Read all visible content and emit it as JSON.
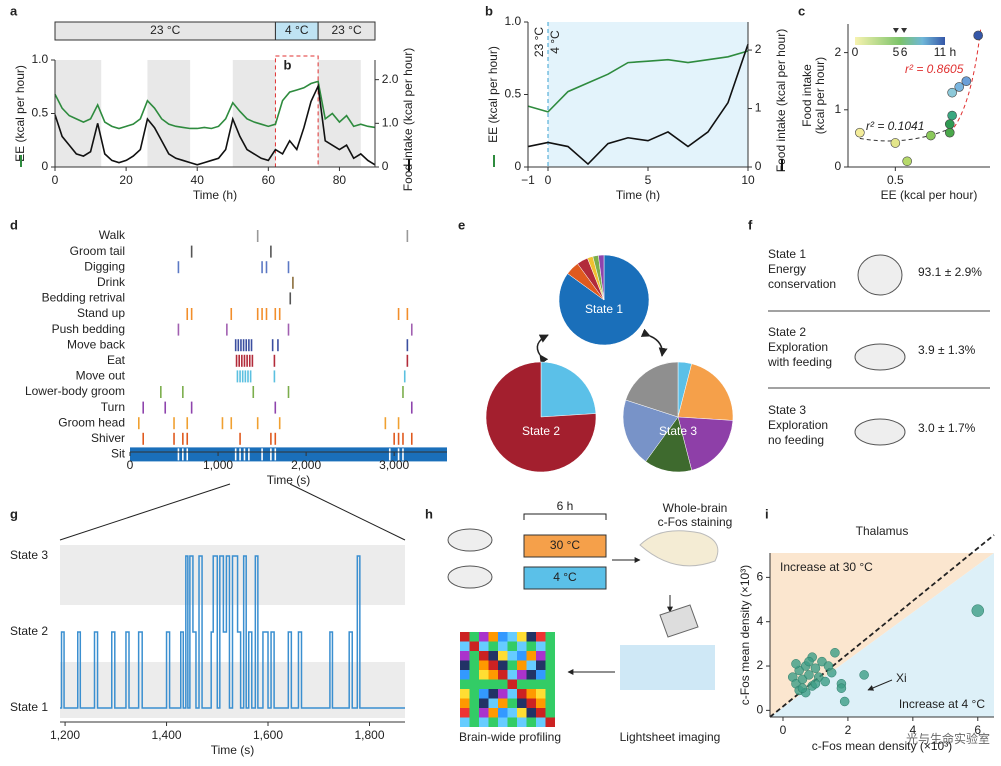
{
  "chart_data": [
    {
      "type": "line",
      "xlim": [
        0,
        90
      ],
      "xticks": [
        0,
        20,
        40,
        60,
        80
      ],
      "ylim": [
        0,
        1
      ],
      "yticks": [
        0,
        0.5,
        {
          "value": 1,
          "label": "1.0"
        }
      ],
      "y2lim": [
        0,
        2.45
      ],
      "y2ticks": [
        0,
        {
          "value": 1,
          "label": "1.0"
        },
        {
          "value": 2,
          "label": "2.0"
        }
      ],
      "xlabel": "Time (h)",
      "ylabel": "EE (kcal per hour)",
      "y2label": "Food intake (kcal per hour)",
      "shaded": [
        [
          0,
          13
        ],
        [
          26,
          38
        ],
        [
          50,
          62
        ],
        [
          74,
          86
        ]
      ],
      "temperature": [
        {
          "label": "23 °C",
          "start": 0,
          "end": 62,
          "color": "#e6e6e6"
        },
        {
          "label": "4 °C",
          "start": 62,
          "end": 74,
          "color": "#bfe3f3"
        },
        {
          "label": "23 °C",
          "start": 74,
          "end": 90,
          "color": "#e6e6e6"
        }
      ],
      "highlight": {
        "label": "b",
        "start": 62,
        "end": 74
      },
      "x": [
        0,
        2,
        4,
        6,
        8,
        10,
        12,
        14,
        16,
        18,
        20,
        22,
        24,
        26,
        28,
        30,
        32,
        34,
        36,
        38,
        40,
        42,
        44,
        46,
        48,
        50,
        52,
        54,
        56,
        58,
        60,
        62,
        64,
        66,
        68,
        70,
        72,
        74,
        76,
        78,
        80,
        82,
        84,
        86,
        88,
        90
      ],
      "series": [
        {
          "color": "#2e8b3e",
          "values": [
            0.68,
            0.55,
            0.48,
            0.45,
            0.42,
            0.45,
            0.58,
            0.42,
            0.38,
            0.36,
            0.38,
            0.4,
            0.45,
            0.62,
            0.55,
            0.45,
            0.4,
            0.38,
            0.37,
            0.36,
            0.36,
            0.37,
            0.36,
            0.38,
            0.45,
            0.6,
            0.52,
            0.45,
            0.42,
            0.4,
            0.38,
            0.4,
            0.62,
            0.7,
            0.72,
            0.74,
            0.78,
            0.8,
            0.45,
            0.5,
            0.42,
            0.48,
            0.38,
            0.4,
            0.38,
            0.37
          ]
        },
        {
          "color": "#111111",
          "axis": "y2",
          "values": [
            1.2,
            0.7,
            0.5,
            0.3,
            0.25,
            0.35,
            1.0,
            0.3,
            0.15,
            0.1,
            0.15,
            0.25,
            0.4,
            1.1,
            0.9,
            0.6,
            0.3,
            0.2,
            0.15,
            0.1,
            0.05,
            0.1,
            0.15,
            0.2,
            0.4,
            1.1,
            0.7,
            0.4,
            0.3,
            0.2,
            0.15,
            0.4,
            0.3,
            0.6,
            0.4,
            0.9,
            1.5,
            1.85,
            0.6,
            0.5,
            0.4,
            0.5,
            0.2,
            0.3,
            0.15,
            0.05
          ]
        }
      ]
    },
    {
      "type": "line",
      "xlim": [
        -1,
        10
      ],
      "xticks": [
        {
          "value": -1,
          "label": "−1"
        },
        0,
        5,
        10
      ],
      "ylim": [
        0,
        1
      ],
      "yticks": [
        0,
        0.5,
        {
          "value": 1,
          "label": "1.0"
        }
      ],
      "y2lim": [
        0,
        2.48
      ],
      "y2ticks": [
        0,
        1,
        2
      ],
      "xlabel": "Time (h)",
      "ylabel": "EE (kcal per hour)",
      "y2label": "Food intake (kcal per hour)",
      "cold_period": [
        0,
        10
      ],
      "annotations": [
        "23 °C",
        "4 °C"
      ],
      "x": [
        -1,
        0,
        1,
        2,
        3,
        4,
        5,
        6,
        7,
        8,
        9,
        10
      ],
      "series": [
        {
          "color": "#2e8b3e",
          "values": [
            0.42,
            0.38,
            0.52,
            0.58,
            0.64,
            0.72,
            0.73,
            0.74,
            0.72,
            0.74,
            0.76,
            0.8
          ]
        },
        {
          "color": "#111111",
          "axis": "y2",
          "values": [
            0.35,
            0.42,
            0.35,
            0.05,
            0.4,
            0.5,
            0.45,
            0.6,
            0.35,
            0.6,
            1.1,
            2.1
          ]
        }
      ]
    },
    {
      "type": "scatter",
      "xlim": [
        0.3,
        0.9
      ],
      "xticks": [
        0.5
      ],
      "ylim": [
        0,
        2.5
      ],
      "yticks": [
        0,
        1,
        2
      ],
      "xlabel": "EE (kcal per hour)",
      "ylabel": [
        "Food intake",
        "(kcal per hour)"
      ],
      "annotations": [
        "r² = 0.8605",
        "r² = 0.1041"
      ],
      "colorbar": {
        "range": [
          0,
          11
        ],
        "ticks": [
          0,
          5,
          6,
          {
            "value": 11,
            "label": "11 h"
          }
        ]
      },
      "x": [
        0.35,
        0.5,
        0.55,
        0.65,
        0.73,
        0.73,
        0.74,
        0.74,
        0.77,
        0.8,
        0.85
      ],
      "values": [
        0.6,
        0.42,
        0.1,
        0.55,
        0.6,
        0.75,
        0.9,
        1.3,
        1.4,
        1.5,
        2.3
      ],
      "colors": [
        "#f3ec9a",
        "#e3e58a",
        "#b6d96a",
        "#8cc95c",
        "#4aa84a",
        "#2f9a52",
        "#3aa780",
        "#8dc9d9",
        "#7ab6e0",
        "#6a9fd8",
        "#3557a8"
      ]
    },
    {
      "type": "ethogram",
      "xlim": [
        0,
        3600
      ],
      "xticks": [
        0,
        {
          "value": 1000,
          "label": "1,000"
        },
        {
          "value": 2000,
          "label": "2,000"
        },
        {
          "value": 3000,
          "label": "3,000"
        }
      ],
      "xlabel": "Time (s)",
      "rows": [
        {
          "label": "Walk",
          "color": "#999999",
          "events": [
            1450,
            3150
          ]
        },
        {
          "label": "Groom tail",
          "color": "#555555",
          "events": [
            700,
            1600
          ]
        },
        {
          "label": "Digging",
          "color": "#5b78c4",
          "events": [
            550,
            1500,
            1550,
            1800
          ]
        },
        {
          "label": "Drink",
          "color": "#8a6d3b",
          "events": [
            1850
          ]
        },
        {
          "label": "Bedding retrival",
          "color": "#555555",
          "events": [
            1820
          ]
        },
        {
          "label": "Stand up",
          "color": "#f28e2b",
          "events": [
            650,
            700,
            1150,
            1450,
            1500,
            1550,
            1650,
            1700,
            3050,
            3150
          ]
        },
        {
          "label": "Push bedding",
          "color": "#a15fb0",
          "events": [
            550,
            1100,
            1800,
            3200
          ]
        },
        {
          "label": "Move back",
          "color": "#3b4fa0",
          "events": [
            1200,
            1230,
            1260,
            1290,
            1320,
            1350,
            1380,
            1620,
            1680,
            3150
          ]
        },
        {
          "label": "Eat",
          "color": "#b22b3a",
          "events": [
            1210,
            1240,
            1270,
            1300,
            1330,
            1360,
            1390,
            1640,
            3150
          ]
        },
        {
          "label": "Move out",
          "color": "#5bc0e0",
          "events": [
            1220,
            1250,
            1280,
            1310,
            1340,
            1370,
            1640,
            3120
          ]
        },
        {
          "label": "Lower-body groom",
          "color": "#7bae4c",
          "events": [
            350,
            600,
            1400,
            1800,
            3100
          ]
        },
        {
          "label": "Turn",
          "color": "#8e44ad",
          "events": [
            150,
            400,
            700,
            1650,
            3200
          ]
        },
        {
          "label": "Groom head",
          "color": "#f0a030",
          "events": [
            100,
            500,
            650,
            1050,
            1150,
            1450,
            1700,
            2900,
            3050
          ]
        },
        {
          "label": "Shiver",
          "color": "#e05a1f",
          "events": [
            150,
            500,
            600,
            650,
            1250,
            1600,
            1650,
            3000,
            3050,
            3100,
            3200
          ]
        },
        {
          "label": "Sit",
          "color": "#1a6fba",
          "fill": true,
          "events": [
            550,
            600,
            650,
            1200,
            1250,
            1300,
            1350,
            1500,
            1600,
            1650,
            2950,
            3050,
            3100
          ]
        }
      ]
    },
    {
      "type": "pie",
      "pies": [
        {
          "label": "State 1",
          "values": [
            85,
            5,
            4,
            2,
            2,
            2
          ],
          "colors": [
            "#1a6fba",
            "#e05a1f",
            "#b22b3a",
            "#f0c030",
            "#7bae4c",
            "#8e44ad"
          ]
        },
        {
          "label": "State 2",
          "values": [
            24,
            76
          ],
          "colors": [
            "#5bc0e8",
            "#a31f2e"
          ]
        },
        {
          "label": "State 3",
          "values": [
            4,
            22,
            20,
            14,
            20,
            20
          ],
          "colors": [
            "#5bc0e8",
            "#f5a04a",
            "#8e3fa8",
            "#3e6a2e",
            "#7893c8",
            "#8f8f8f"
          ]
        }
      ]
    },
    {
      "type": "step",
      "xlim": [
        1190,
        1870
      ],
      "xticks": [
        {
          "value": 1200,
          "label": "1,200"
        },
        {
          "value": 1400,
          "label": "1,400"
        },
        {
          "value": 1600,
          "label": "1,600"
        },
        {
          "value": 1800,
          "label": "1,800"
        }
      ],
      "ylim": [
        1,
        3
      ],
      "yticks": [
        {
          "value": 3,
          "label": "State 3"
        },
        {
          "value": 2,
          "label": "State 2"
        },
        {
          "value": 1,
          "label": "State 1"
        }
      ],
      "xlabel": "Time (s)",
      "color": "#3a8fd0",
      "x": [
        1190,
        1193,
        1198,
        1225,
        1230,
        1258,
        1264,
        1292,
        1298,
        1320,
        1326,
        1345,
        1352,
        1400,
        1406,
        1428,
        1433,
        1438,
        1442,
        1446,
        1452,
        1458,
        1464,
        1470,
        1488,
        1492,
        1500,
        1505,
        1512,
        1518,
        1524,
        1530,
        1540,
        1546,
        1552,
        1557,
        1562,
        1568,
        1575,
        1580,
        1590,
        1600,
        1606,
        1612,
        1640,
        1646,
        1660,
        1666,
        1722,
        1727,
        1760,
        1766,
        1776,
        1781,
        1870
      ],
      "values": [
        1,
        2,
        1,
        2,
        1,
        2,
        1,
        2,
        1,
        2,
        1,
        2,
        1,
        2,
        1,
        2,
        1,
        3,
        1,
        3,
        2,
        1,
        3,
        1,
        2,
        3,
        1,
        3,
        2,
        3,
        1,
        3,
        2,
        1,
        3,
        1,
        2,
        1,
        3,
        1,
        2,
        1,
        2,
        1,
        2,
        1,
        2,
        1,
        2,
        1,
        2,
        1,
        3,
        1,
        1
      ]
    },
    {
      "type": "scatter",
      "title": "Thalamus",
      "xlim": [
        -0.4,
        6.5
      ],
      "xticks": [
        0,
        2,
        4,
        6
      ],
      "ylim": [
        -0.3,
        7.1
      ],
      "yticks": [
        0,
        2,
        4,
        6
      ],
      "xlabel": "c-Fos mean density (×10³)",
      "ylabel": "c-Fos mean density (×10³)",
      "annotations": [
        "Increase at 30 °C",
        "Increase at 4 °C",
        "Xi"
      ],
      "color": "#3d9e86",
      "x": [
        0.3,
        0.4,
        0.5,
        0.6,
        0.7,
        0.8,
        0.9,
        1.0,
        1.1,
        1.2,
        0.5,
        0.7,
        0.4,
        0.9,
        1.3,
        1.5,
        1.6,
        0.6,
        1.0,
        1.4,
        0.8,
        1.8,
        1.8,
        2.5,
        1.9,
        6.0
      ],
      "values": [
        1.5,
        1.2,
        1.8,
        1.4,
        2.0,
        1.6,
        1.1,
        1.9,
        1.5,
        2.2,
        0.9,
        0.8,
        2.1,
        2.4,
        1.3,
        1.7,
        2.6,
        1.0,
        1.2,
        2.0,
        2.2,
        1.2,
        1.0,
        1.6,
        0.4,
        4.5
      ]
    }
  ],
  "panel_f": [
    {
      "state": "State 1",
      "desc": [
        "Energy",
        "conservation"
      ],
      "value": "93.1 ± 2.9%"
    },
    {
      "state": "State 2",
      "desc": [
        "Exploration",
        "with feeding"
      ],
      "value": "3.9 ± 1.3%"
    },
    {
      "state": "State 3",
      "desc": [
        "Exploration",
        "no feeding"
      ],
      "value": "3.0 ± 1.7%"
    }
  ],
  "panel_h": {
    "duration": "6 h",
    "warm": "30 °C",
    "cold": "4 °C",
    "staining": [
      "Whole-brain",
      "c-Fos staining"
    ],
    "profiling": "Brain-wide profiling",
    "imaging": "Lightsheet imaging"
  },
  "panel_labels": [
    "a",
    "b",
    "c",
    "d",
    "e",
    "f",
    "g",
    "h",
    "i"
  ],
  "watermark": "光与生命实验室"
}
